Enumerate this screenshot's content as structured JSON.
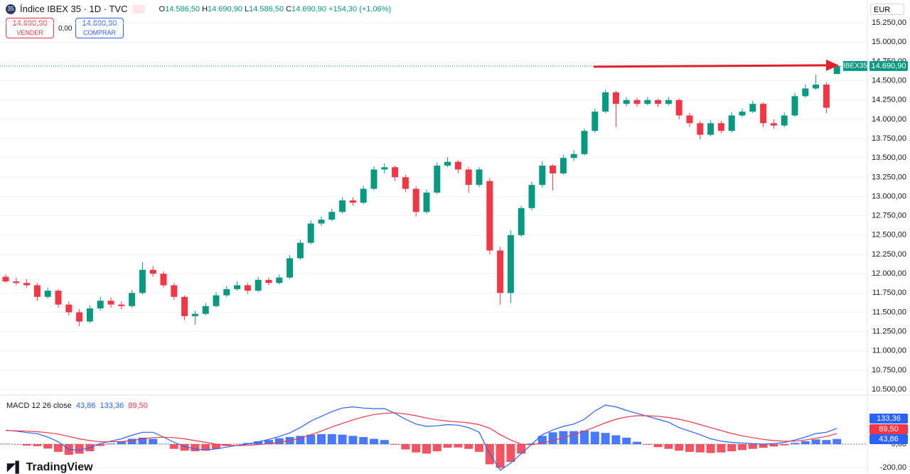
{
  "header": {
    "icon": "35",
    "symbol": "Índice IBEX 35 · 1D · TVC",
    "o_label": "O",
    "o": "14.586,50",
    "h_label": "H",
    "h": "14.690,90",
    "l_label": "L",
    "l": "14.586,50",
    "c_label": "C",
    "c": "14.690,90",
    "change": "+154,30 (+1,06%)",
    "sell_price": "14.690,90",
    "sell": "VENDER",
    "spread": "0,00",
    "buy_price": "14.690,90",
    "buy": "COMPRAR",
    "currency": "EUR"
  },
  "footer": {
    "logo": "TradingView"
  },
  "chart_data": [
    {
      "type": "candlestick",
      "symbol_tag": "IBEX35",
      "last_label": "14.690,90",
      "last": 14690.9,
      "up_color": "#089981",
      "down_color": "#f23645",
      "ylim": [
        10436,
        15500
      ],
      "yticks": [
        {
          "value": 10500,
          "label": "10.500,00"
        },
        {
          "value": 10750,
          "label": "10.750,00"
        },
        {
          "value": 11000,
          "label": "11.000,00"
        },
        {
          "value": 11250,
          "label": "11.250,00"
        },
        {
          "value": 11500,
          "label": "11.500,00"
        },
        {
          "value": 11750,
          "label": "11.750,00"
        },
        {
          "value": 12000,
          "label": "12.000,00"
        },
        {
          "value": 12250,
          "label": "12.250,00"
        },
        {
          "value": 12500,
          "label": "12.500,00"
        },
        {
          "value": 12750,
          "label": "12.750,00"
        },
        {
          "value": 13000,
          "label": "13.000,00"
        },
        {
          "value": 13250,
          "label": "13.250,00"
        },
        {
          "value": 13500,
          "label": "13.500,00"
        },
        {
          "value": 13750,
          "label": "13.750,00"
        },
        {
          "value": 14000,
          "label": "14.000,00"
        },
        {
          "value": 14250,
          "label": "14.250,00"
        },
        {
          "value": 14500,
          "label": "14.500,00"
        },
        {
          "value": 14750,
          "label": "14.750,00"
        },
        {
          "value": 15000,
          "label": "15.000,00"
        },
        {
          "value": 15250,
          "label": "15.250,00"
        }
      ],
      "ohlc": [
        [
          11960,
          11990,
          11880,
          11900
        ],
        [
          11900,
          11950,
          11850,
          11880
        ],
        [
          11880,
          11930,
          11820,
          11850
        ],
        [
          11850,
          11880,
          11650,
          11700
        ],
        [
          11700,
          11820,
          11680,
          11780
        ],
        [
          11780,
          11800,
          11560,
          11600
        ],
        [
          11600,
          11640,
          11460,
          11500
        ],
        [
          11500,
          11540,
          11320,
          11380
        ],
        [
          11380,
          11590,
          11360,
          11550
        ],
        [
          11550,
          11700,
          11520,
          11650
        ],
        [
          11650,
          11690,
          11560,
          11600
        ],
        [
          11600,
          11640,
          11540,
          11580
        ],
        [
          11580,
          11790,
          11560,
          11750
        ],
        [
          11750,
          12150,
          11730,
          12050
        ],
        [
          12050,
          12100,
          11960,
          12000
        ],
        [
          12000,
          12030,
          11820,
          11850
        ],
        [
          11850,
          11880,
          11660,
          11700
        ],
        [
          11700,
          11720,
          11400,
          11450
        ],
        [
          11450,
          11520,
          11340,
          11480
        ],
        [
          11480,
          11620,
          11460,
          11580
        ],
        [
          11580,
          11760,
          11560,
          11720
        ],
        [
          11720,
          11840,
          11700,
          11800
        ],
        [
          11800,
          11900,
          11780,
          11850
        ],
        [
          11850,
          11880,
          11740,
          11780
        ],
        [
          11780,
          11960,
          11760,
          11920
        ],
        [
          11920,
          11950,
          11850,
          11880
        ],
        [
          11880,
          11990,
          11860,
          11950
        ],
        [
          11950,
          12240,
          11930,
          12200
        ],
        [
          12200,
          12440,
          12180,
          12400
        ],
        [
          12400,
          12690,
          12380,
          12650
        ],
        [
          12650,
          12740,
          12620,
          12700
        ],
        [
          12700,
          12840,
          12680,
          12800
        ],
        [
          12800,
          12990,
          12780,
          12950
        ],
        [
          12950,
          12990,
          12880,
          12920
        ],
        [
          12920,
          13140,
          12900,
          13100
        ],
        [
          13100,
          13390,
          13080,
          13350
        ],
        [
          13350,
          13430,
          13300,
          13380
        ],
        [
          13380,
          13400,
          13200,
          13250
        ],
        [
          13250,
          13280,
          13060,
          13100
        ],
        [
          13100,
          13130,
          12740,
          12800
        ],
        [
          12800,
          13090,
          12780,
          13050
        ],
        [
          13050,
          13440,
          13030,
          13400
        ],
        [
          13400,
          13510,
          13380,
          13450
        ],
        [
          13450,
          13470,
          13300,
          13350
        ],
        [
          13350,
          13380,
          13050,
          13150
        ],
        [
          13150,
          13380,
          13120,
          13350
        ],
        [
          13200,
          13240,
          12250,
          12300
        ],
        [
          12300,
          12350,
          11600,
          11750
        ],
        [
          11750,
          12560,
          11620,
          12500
        ],
        [
          12500,
          12880,
          12480,
          12850
        ],
        [
          12850,
          13190,
          12820,
          13150
        ],
        [
          13150,
          13460,
          13120,
          13400
        ],
        [
          13400,
          13420,
          13080,
          13300
        ],
        [
          13300,
          13540,
          13280,
          13500
        ],
        [
          13500,
          13600,
          13460,
          13550
        ],
        [
          13550,
          13880,
          13530,
          13850
        ],
        [
          13850,
          14140,
          13830,
          14100
        ],
        [
          14100,
          14380,
          14080,
          14350
        ],
        [
          14350,
          14370,
          13900,
          14200
        ],
        [
          14200,
          14290,
          14170,
          14250
        ],
        [
          14250,
          14280,
          14160,
          14200
        ],
        [
          14200,
          14290,
          14180,
          14250
        ],
        [
          14250,
          14270,
          14160,
          14200
        ],
        [
          14200,
          14290,
          14180,
          14250
        ],
        [
          14250,
          14270,
          14000,
          14050
        ],
        [
          14050,
          14080,
          13900,
          13950
        ],
        [
          13950,
          13980,
          13740,
          13800
        ],
        [
          13800,
          13990,
          13780,
          13950
        ],
        [
          13950,
          13980,
          13820,
          13850
        ],
        [
          13850,
          14090,
          13830,
          14050
        ],
        [
          14050,
          14140,
          14030,
          14100
        ],
        [
          14100,
          14240,
          14080,
          14200
        ],
        [
          14200,
          14220,
          13900,
          13950
        ],
        [
          13950,
          14000,
          13880,
          13920
        ],
        [
          13920,
          14090,
          13900,
          14050
        ],
        [
          14050,
          14340,
          14030,
          14300
        ],
        [
          14300,
          14450,
          14280,
          14400
        ],
        [
          14400,
          14580,
          14380,
          14450
        ],
        [
          14450,
          14480,
          14080,
          14150
        ],
        [
          14586.5,
          14690.9,
          14586.5,
          14690.9
        ]
      ]
    },
    {
      "type": "macd",
      "title": "MACD 12 26 close",
      "ylim": [
        -240,
        390
      ],
      "yticks": [
        {
          "value": 0,
          "label": "0,00"
        },
        {
          "value": -200,
          "label": "-200,00"
        }
      ],
      "histogram": {
        "color_up": "#2962ff",
        "color_down": "#f23645",
        "last_label": "43,86",
        "values": [
          3,
          -3,
          -12,
          -17,
          -37,
          -65,
          -90,
          -80,
          -60,
          -15,
          5,
          23,
          45,
          55,
          45,
          2,
          -40,
          -55,
          -60,
          -55,
          -40,
          -15,
          2,
          10,
          24,
          35,
          50,
          60,
          70,
          80,
          85,
          85,
          80,
          70,
          60,
          45,
          35,
          -5,
          -45,
          -70,
          -80,
          -60,
          -30,
          -28,
          -40,
          -65,
          -170,
          -200,
          -150,
          -80,
          5,
          70,
          100,
          110,
          110,
          115,
          105,
          95,
          75,
          55,
          20,
          -5,
          -25,
          -40,
          -55,
          -65,
          -70,
          -75,
          -70,
          -60,
          -50,
          -40,
          -30,
          -20,
          -10,
          10,
          25,
          40,
          35,
          43.86
        ]
      },
      "series": [
        {
          "color": "#2962ff",
          "last_label": "133,36",
          "values": [
            118,
            110,
            98,
            88,
            60,
            20,
            -45,
            -50,
            -30,
            5,
            25,
            45,
            75,
            100,
            100,
            60,
            15,
            -20,
            -40,
            -50,
            -40,
            -25,
            -10,
            0,
            20,
            40,
            65,
            95,
            140,
            195,
            235,
            275,
            305,
            315,
            305,
            300,
            300,
            260,
            210,
            170,
            150,
            155,
            165,
            160,
            140,
            100,
            -80,
            -220,
            -160,
            -80,
            0,
            80,
            120,
            150,
            170,
            210,
            280,
            330,
            315,
            285,
            260,
            235,
            210,
            185,
            140,
            110,
            80,
            45,
            25,
            15,
            10,
            5,
            0,
            5,
            15,
            35,
            60,
            90,
            100,
            133.36
          ]
        },
        {
          "color": "#f23645",
          "last_label": "89,50",
          "values": [
            115,
            113,
            110,
            105,
            97,
            85,
            65,
            45,
            30,
            20,
            20,
            22,
            30,
            45,
            55,
            58,
            55,
            45,
            30,
            15,
            0,
            -10,
            -12,
            -10,
            -4,
            5,
            15,
            30,
            50,
            80,
            110,
            145,
            175,
            205,
            230,
            250,
            260,
            265,
            255,
            240,
            220,
            205,
            195,
            188,
            180,
            165,
            135,
            80,
            35,
            0,
            -5,
            10,
            30,
            55,
            80,
            110,
            145,
            180,
            210,
            230,
            240,
            240,
            235,
            225,
            210,
            190,
            165,
            140,
            115,
            90,
            70,
            55,
            40,
            30,
            25,
            25,
            35,
            50,
            65,
            89.5
          ]
        }
      ]
    }
  ]
}
